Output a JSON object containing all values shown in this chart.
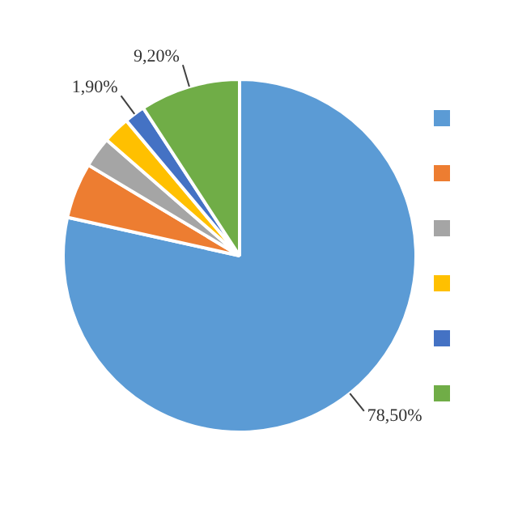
{
  "chart_data": {
    "type": "pie",
    "categories": [
      null,
      null,
      null,
      null,
      null,
      null
    ],
    "values": [
      78.5,
      5.1,
      2.8,
      2.5,
      1.9,
      9.2
    ],
    "colors": [
      "#5b9bd5",
      "#ed7d31",
      "#a5a5a5",
      "#ffc000",
      "#4472c4",
      "#70ad47"
    ],
    "value_labels": [
      "78,50%",
      null,
      null,
      null,
      "1,90%",
      "9,20%"
    ]
  }
}
